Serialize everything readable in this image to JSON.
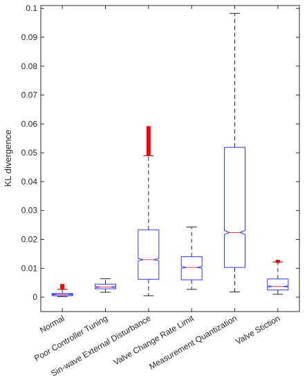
{
  "chart_data": {
    "type": "box",
    "ylabel": "KL divergence",
    "xlabel": "",
    "title": "",
    "ylim": [
      -0.005,
      0.101
    ],
    "yticks": [
      0,
      0.01,
      0.02,
      0.03,
      0.04,
      0.05,
      0.06,
      0.07,
      0.08,
      0.09,
      0.1
    ],
    "ytick_labels": [
      "0",
      "0.01",
      "0.02",
      "0.03",
      "0.04",
      "0.05",
      "0.06",
      "0.07",
      "0.08",
      "0.09",
      "0.1"
    ],
    "notched": true,
    "grid": false,
    "categories": [
      "Normal",
      "Poor Controller Tuning",
      "Sin-wave External Disturbance",
      "Valve Change Rate Limit",
      "Measurement Quantization",
      "Valve Stiction"
    ],
    "boxes": [
      {
        "whisker_low": 0.0002,
        "q1": 0.0005,
        "median": 0.0009,
        "q3": 0.0013,
        "whisker_high": 0.0027,
        "notch_low": 0.0008,
        "notch_high": 0.001,
        "outliers_low": 0.0028,
        "outliers_high": 0.0043
      },
      {
        "whisker_low": 0.0017,
        "q1": 0.0029,
        "median": 0.0035,
        "q3": 0.0045,
        "whisker_high": 0.0064,
        "notch_low": 0.0033,
        "notch_high": 0.0037,
        "outliers_low": null,
        "outliers_high": null
      },
      {
        "whisker_low": 0.0005,
        "q1": 0.0062,
        "median": 0.013,
        "q3": 0.0233,
        "whisker_high": 0.049,
        "notch_low": 0.0126,
        "notch_high": 0.0134,
        "outliers_low": 0.0491,
        "outliers_high": 0.059
      },
      {
        "whisker_low": 0.0027,
        "q1": 0.006,
        "median": 0.0103,
        "q3": 0.014,
        "whisker_high": 0.0243,
        "notch_low": 0.01,
        "notch_high": 0.0106,
        "outliers_low": null,
        "outliers_high": null
      },
      {
        "whisker_low": 0.0018,
        "q1": 0.0103,
        "median": 0.0224,
        "q3": 0.0519,
        "whisker_high": 0.0983,
        "notch_low": 0.0217,
        "notch_high": 0.0231,
        "outliers_low": null,
        "outliers_high": null
      },
      {
        "whisker_low": 0.001,
        "q1": 0.0025,
        "median": 0.0037,
        "q3": 0.0063,
        "whisker_high": 0.0122,
        "notch_low": 0.0035,
        "notch_high": 0.0039,
        "outliers_low": 0.0121,
        "outliers_high": 0.0127
      }
    ],
    "colors": {
      "box": "#3333ff",
      "median": "#ff3333",
      "whisker": "#222222",
      "outlier": "#ff0000",
      "axis": "#262626"
    }
  }
}
